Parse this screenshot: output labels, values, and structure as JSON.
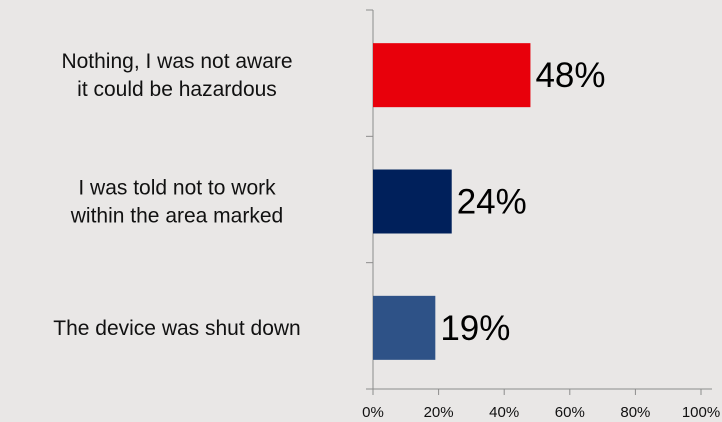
{
  "chart_data": {
    "type": "bar",
    "orientation": "horizontal",
    "categories": [
      [
        "Nothing, I was not aware",
        "it could be hazardous"
      ],
      [
        "I was told not to work",
        "within the area marked"
      ],
      [
        "The device was shut down"
      ]
    ],
    "values": [
      48,
      24,
      19
    ],
    "value_labels": [
      "48%",
      "24%",
      "19%"
    ],
    "bar_colors": [
      "#e8000b",
      "#00205b",
      "#2e5287"
    ],
    "xlim": [
      0,
      100
    ],
    "xticks": [
      "0%",
      "20%",
      "40%",
      "60%",
      "80%",
      "100%"
    ],
    "title": "",
    "xlabel": "",
    "ylabel": "",
    "grid": false,
    "legend": "none"
  }
}
